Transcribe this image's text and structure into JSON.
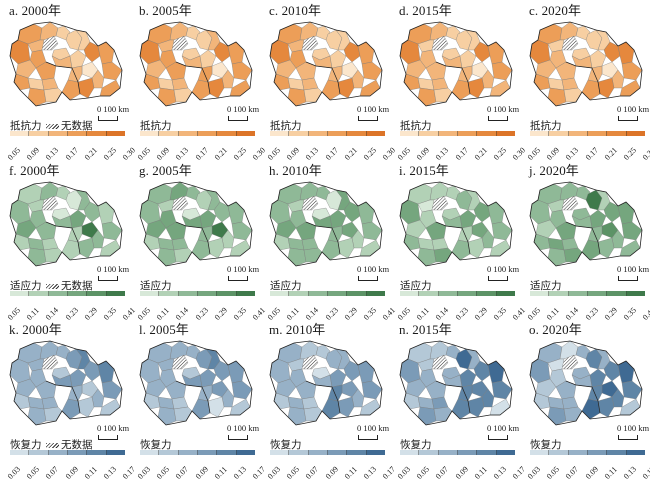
{
  "figure": {
    "nodata_label": "无数据",
    "scale_label": "0  100 km",
    "rows": [
      {
        "indicator": "抵抗力",
        "palette": [
          "#fbe6cc",
          "#f7cfa2",
          "#f2b57a",
          "#ec9e58",
          "#e5883d",
          "#dc7428"
        ],
        "ticks": [
          "0.05",
          "0.09",
          "0.13",
          "0.17",
          "0.21",
          "0.25",
          "0.30"
        ]
      },
      {
        "indicator": "适应力",
        "palette": [
          "#d7e8d8",
          "#b2d1b6",
          "#8fb997",
          "#75a67e",
          "#5c9366",
          "#3f7a4b"
        ],
        "ticks": [
          "0.05",
          "0.11",
          "0.14",
          "0.23",
          "0.29",
          "0.35",
          "0.41"
        ]
      },
      {
        "indicator": "恢复力",
        "palette": [
          "#d3e0e8",
          "#b4c8d7",
          "#97b1c7",
          "#7b9bb7",
          "#5f85a6",
          "#3f6a93"
        ],
        "ticks": [
          "0.03",
          "0.05",
          "0.07",
          "0.09",
          "0.11",
          "0.13",
          "0.17"
        ]
      }
    ],
    "panels": [
      {
        "title": "a. 2000年",
        "row": 0,
        "show_nodata_legend": true,
        "classes": [
          3,
          2,
          1,
          4,
          1,
          1,
          2,
          1,
          3,
          2,
          3,
          2,
          3,
          1,
          2,
          1,
          4,
          3,
          0,
          3,
          2,
          2,
          3,
          4,
          3,
          1,
          3
        ]
      },
      {
        "title": "b. 2005年",
        "row": 0,
        "show_nodata_legend": false,
        "classes": [
          3,
          2,
          1,
          4,
          1,
          2,
          2,
          1,
          3,
          2,
          3,
          2,
          3,
          1,
          2,
          1,
          4,
          3,
          0,
          3,
          3,
          2,
          3,
          4,
          3,
          1,
          3
        ]
      },
      {
        "title": "c. 2010年",
        "row": 0,
        "show_nodata_legend": false,
        "classes": [
          3,
          2,
          1,
          4,
          1,
          1,
          2,
          1,
          3,
          2,
          2,
          2,
          3,
          1,
          2,
          1,
          4,
          3,
          0,
          3,
          2,
          2,
          3,
          4,
          3,
          1,
          3
        ]
      },
      {
        "title": "d. 2015年",
        "row": 0,
        "show_nodata_legend": false,
        "classes": [
          3,
          2,
          1,
          4,
          1,
          1,
          1,
          1,
          2,
          2,
          2,
          2,
          3,
          1,
          2,
          1,
          4,
          3,
          0,
          3,
          2,
          2,
          3,
          4,
          3,
          1,
          2
        ]
      },
      {
        "title": "c. 2020年",
        "row": 0,
        "show_nodata_legend": false,
        "classes": [
          3,
          2,
          1,
          4,
          1,
          1,
          1,
          1,
          2,
          2,
          2,
          2,
          3,
          1,
          2,
          1,
          4,
          4,
          0,
          3,
          2,
          2,
          3,
          4,
          3,
          1,
          3
        ]
      },
      {
        "title": "f. 2000年",
        "row": 1,
        "show_nodata_legend": true,
        "classes": [
          1,
          2,
          1,
          2,
          0,
          2,
          1,
          0,
          2,
          3,
          2,
          2,
          1,
          2,
          1,
          3,
          2,
          1,
          5,
          2,
          1,
          2,
          1,
          2,
          2,
          1,
          1
        ]
      },
      {
        "title": "g. 2005年",
        "row": 1,
        "show_nodata_legend": false,
        "classes": [
          2,
          3,
          2,
          2,
          1,
          2,
          1,
          0,
          3,
          3,
          3,
          3,
          1,
          2,
          2,
          3,
          2,
          2,
          5,
          2,
          2,
          1,
          2,
          1,
          2,
          1,
          1
        ]
      },
      {
        "title": "h. 2010年",
        "row": 1,
        "show_nodata_legend": false,
        "classes": [
          2,
          2,
          2,
          2,
          0,
          3,
          1,
          0,
          2,
          3,
          3,
          3,
          1,
          2,
          2,
          3,
          3,
          2,
          3,
          2,
          2,
          1,
          2,
          1,
          2,
          2,
          1
        ]
      },
      {
        "title": "i. 2015年",
        "row": 1,
        "show_nodata_legend": false,
        "classes": [
          1,
          1,
          1,
          3,
          2,
          1,
          0,
          1,
          1,
          1,
          3,
          2,
          2,
          1,
          1,
          3,
          3,
          2,
          3,
          2,
          1,
          2,
          2,
          1,
          2,
          3,
          1
        ]
      },
      {
        "title": "j. 2020年",
        "row": 1,
        "show_nodata_legend": false,
        "classes": [
          2,
          2,
          2,
          2,
          5,
          1,
          1,
          2,
          2,
          1,
          3,
          2,
          2,
          3,
          2,
          3,
          3,
          3,
          4,
          3,
          2,
          2,
          3,
          2,
          2,
          3,
          2
        ]
      },
      {
        "title": "k. 2000年",
        "row": 2,
        "show_nodata_legend": true,
        "classes": [
          2,
          2,
          2,
          2,
          3,
          4,
          2,
          1,
          2,
          2,
          2,
          3,
          1,
          2,
          2,
          3,
          3,
          4,
          1,
          3,
          2,
          2,
          3,
          1,
          2,
          1,
          1
        ]
      },
      {
        "title": "l. 2005年",
        "row": 2,
        "show_nodata_legend": false,
        "classes": [
          2,
          2,
          2,
          2,
          3,
          4,
          2,
          1,
          2,
          2,
          2,
          3,
          1,
          2,
          1,
          3,
          3,
          3,
          3,
          3,
          2,
          2,
          3,
          0,
          2,
          1,
          1
        ]
      },
      {
        "title": "m. 2010年",
        "row": 2,
        "show_nodata_legend": false,
        "classes": [
          2,
          1,
          1,
          2,
          2,
          2,
          1,
          0,
          2,
          2,
          2,
          2,
          1,
          2,
          1,
          3,
          3,
          3,
          3,
          3,
          4,
          2,
          4,
          3,
          2,
          1,
          1
        ]
      },
      {
        "title": "n. 2015年",
        "row": 2,
        "show_nodata_legend": false,
        "classes": [
          1,
          1,
          2,
          3,
          5,
          2,
          1,
          2,
          2,
          2,
          2,
          2,
          1,
          2,
          3,
          4,
          4,
          5,
          4,
          4,
          4,
          4,
          4,
          4,
          3,
          2,
          0
        ]
      },
      {
        "title": "o. 2020年",
        "row": 2,
        "show_nodata_legend": false,
        "classes": [
          2,
          0,
          2,
          3,
          4,
          2,
          0,
          2,
          1,
          1,
          2,
          2,
          1,
          2,
          2,
          4,
          4,
          5,
          5,
          4,
          4,
          4,
          5,
          4,
          3,
          2,
          1
        ]
      }
    ]
  }
}
